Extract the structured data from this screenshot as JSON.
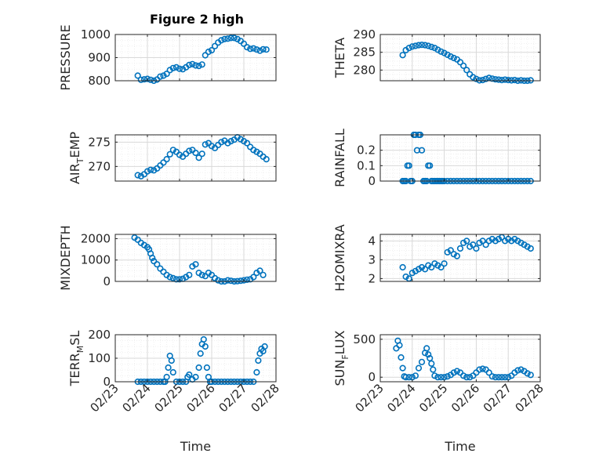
{
  "title": "Figure 2 high",
  "style": {
    "marker_color": "#0072BD",
    "axis_color": "#262626",
    "grid_major": "#d9d9d9",
    "grid_minor": "#ececec",
    "background": "#ffffff"
  },
  "chart_data": [
    {
      "id": "pressure",
      "type": "scatter",
      "ylabel": "PRESSURE",
      "xlim": [
        0,
        5
      ],
      "ylim": [
        800,
        1000
      ],
      "yticks": [
        800,
        900,
        1000
      ],
      "xticks": [
        0,
        1,
        2,
        3,
        4,
        5
      ],
      "show_xticklabels": false,
      "grid": true,
      "minor_grid": true,
      "x": [
        0.7,
        0.8,
        0.9,
        1.0,
        1.1,
        1.2,
        1.3,
        1.4,
        1.5,
        1.6,
        1.7,
        1.8,
        1.9,
        2.0,
        2.1,
        2.2,
        2.3,
        2.4,
        2.5,
        2.6,
        2.7,
        2.8,
        2.9,
        3.0,
        3.1,
        3.2,
        3.3,
        3.4,
        3.5,
        3.6,
        3.7,
        3.8,
        3.9,
        4.0,
        4.1,
        4.2,
        4.3,
        4.4,
        4.5,
        4.6,
        4.7
      ],
      "y": [
        822,
        804,
        806,
        808,
        804,
        800,
        805,
        818,
        822,
        830,
        846,
        855,
        858,
        852,
        850,
        858,
        868,
        872,
        866,
        864,
        870,
        910,
        925,
        932,
        950,
        965,
        975,
        980,
        982,
        985,
        985,
        980,
        972,
        960,
        945,
        938,
        940,
        935,
        930,
        936,
        935
      ]
    },
    {
      "id": "theta",
      "type": "scatter",
      "ylabel": "THETA",
      "xlim": [
        0,
        5
      ],
      "ylim": [
        277,
        290
      ],
      "yticks": [
        280,
        285,
        290
      ],
      "xticks": [
        0,
        1,
        2,
        3,
        4,
        5
      ],
      "show_xticklabels": false,
      "grid": true,
      "minor_grid": true,
      "x": [
        0.7,
        0.8,
        0.9,
        1.0,
        1.1,
        1.2,
        1.3,
        1.4,
        1.5,
        1.6,
        1.7,
        1.8,
        1.9,
        2.0,
        2.1,
        2.2,
        2.3,
        2.4,
        2.5,
        2.6,
        2.7,
        2.8,
        2.9,
        3.0,
        3.1,
        3.2,
        3.3,
        3.4,
        3.5,
        3.6,
        3.7,
        3.8,
        3.9,
        4.0,
        4.1,
        4.2,
        4.3,
        4.4,
        4.5,
        4.6,
        4.7
      ],
      "y": [
        284.2,
        285.6,
        286.2,
        286.6,
        286.8,
        287.0,
        287.1,
        287.0,
        286.8,
        286.5,
        286.2,
        285.7,
        285.2,
        284.8,
        284.3,
        283.8,
        283.4,
        283.0,
        282.2,
        281.2,
        280.0,
        278.8,
        278.0,
        277.5,
        277.1,
        277.2,
        277.5,
        277.8,
        277.6,
        277.4,
        277.3,
        277.2,
        277.3,
        277.2,
        277.1,
        277.2,
        277.0,
        277.1,
        277.0,
        277.0,
        277.1
      ]
    },
    {
      "id": "air_temp",
      "type": "scatter",
      "ylabel": "AIR_TEMP",
      "ylabel_main": "AIR",
      "ylabel_sub": "T",
      "ylabel_rest": "EMP",
      "xlim": [
        0,
        5
      ],
      "ylim": [
        267,
        276.5
      ],
      "yticks": [
        270,
        275
      ],
      "xticks": [
        0,
        1,
        2,
        3,
        4,
        5
      ],
      "show_xticklabels": false,
      "grid": true,
      "minor_grid": true,
      "x": [
        0.7,
        0.8,
        0.9,
        1.0,
        1.1,
        1.2,
        1.3,
        1.4,
        1.5,
        1.6,
        1.7,
        1.8,
        1.9,
        2.0,
        2.1,
        2.2,
        2.3,
        2.4,
        2.5,
        2.6,
        2.7,
        2.8,
        2.9,
        3.0,
        3.1,
        3.2,
        3.3,
        3.4,
        3.5,
        3.6,
        3.7,
        3.8,
        3.9,
        4.0,
        4.1,
        4.2,
        4.3,
        4.4,
        4.5,
        4.6,
        4.7
      ],
      "y": [
        268.2,
        268.0,
        268.4,
        269.0,
        269.3,
        269.2,
        269.6,
        270.2,
        270.8,
        271.5,
        272.5,
        273.4,
        273.0,
        272.4,
        272.0,
        272.6,
        273.2,
        273.4,
        272.8,
        271.8,
        272.6,
        274.5,
        274.8,
        274.2,
        273.8,
        274.4,
        275.0,
        275.3,
        274.8,
        275.2,
        275.5,
        276.0,
        275.6,
        275.2,
        274.8,
        274.0,
        273.4,
        273.0,
        272.6,
        272.0,
        271.5
      ]
    },
    {
      "id": "rainfall",
      "type": "scatter",
      "ylabel": "RAINFALL",
      "xlim": [
        0,
        5
      ],
      "ylim": [
        0,
        0.3
      ],
      "yticks": [
        0,
        0.1,
        0.2
      ],
      "xticks": [
        0,
        1,
        2,
        3,
        4,
        5
      ],
      "show_xticklabels": false,
      "grid": true,
      "minor_grid": true,
      "x": [
        0.7,
        0.75,
        0.8,
        0.85,
        0.9,
        0.95,
        1.0,
        1.05,
        1.1,
        1.15,
        1.2,
        1.25,
        1.3,
        1.35,
        1.4,
        1.45,
        1.5,
        1.55,
        1.6,
        1.65,
        1.7,
        1.75,
        1.8,
        1.85,
        1.9,
        1.95,
        2.0,
        2.1,
        2.2,
        2.3,
        2.4,
        2.5,
        2.6,
        2.7,
        2.8,
        2.9,
        3.0,
        3.1,
        3.2,
        3.3,
        3.4,
        3.5,
        3.6,
        3.7,
        3.8,
        3.9,
        4.0,
        4.1,
        4.2,
        4.3,
        4.4,
        4.5,
        4.6,
        4.7
      ],
      "y": [
        0,
        0,
        0,
        0.1,
        0.1,
        0,
        0,
        0.3,
        0.3,
        0.2,
        0.3,
        0.3,
        0.2,
        0,
        0,
        0,
        0.1,
        0.1,
        0,
        0,
        0,
        0,
        0,
        0,
        0,
        0,
        0,
        0,
        0,
        0,
        0,
        0,
        0,
        0,
        0,
        0,
        0,
        0,
        0,
        0,
        0,
        0,
        0,
        0,
        0,
        0,
        0,
        0,
        0,
        0,
        0,
        0,
        0,
        0
      ]
    },
    {
      "id": "mixdepth",
      "type": "scatter",
      "ylabel": "MIXDEPTH",
      "xlim": [
        0,
        5
      ],
      "ylim": [
        0,
        2200
      ],
      "yticks": [
        0,
        1000,
        2000
      ],
      "xticks": [
        0,
        1,
        2,
        3,
        4,
        5
      ],
      "show_xticklabels": false,
      "grid": true,
      "minor_grid": true,
      "x": [
        0.6,
        0.7,
        0.8,
        0.9,
        1.0,
        1.05,
        1.1,
        1.15,
        1.2,
        1.3,
        1.4,
        1.5,
        1.6,
        1.7,
        1.8,
        1.9,
        2.0,
        2.1,
        2.2,
        2.3,
        2.4,
        2.5,
        2.6,
        2.7,
        2.8,
        2.9,
        3.0,
        3.1,
        3.2,
        3.3,
        3.4,
        3.5,
        3.6,
        3.7,
        3.8,
        3.9,
        4.0,
        4.1,
        4.2,
        4.3,
        4.4,
        4.5,
        4.6
      ],
      "y": [
        2050,
        1950,
        1800,
        1700,
        1600,
        1500,
        1300,
        1100,
        950,
        800,
        600,
        450,
        300,
        200,
        150,
        100,
        100,
        120,
        200,
        300,
        700,
        800,
        400,
        300,
        250,
        400,
        300,
        150,
        50,
        0,
        0,
        50,
        30,
        0,
        10,
        30,
        50,
        80,
        100,
        200,
        400,
        500,
        300
      ]
    },
    {
      "id": "h2omixra",
      "type": "scatter",
      "ylabel": "H2OMIXRA",
      "xlim": [
        0,
        5
      ],
      "ylim": [
        1.85,
        4.35
      ],
      "yticks": [
        2,
        3,
        4
      ],
      "xticks": [
        0,
        1,
        2,
        3,
        4,
        5
      ],
      "show_xticklabels": false,
      "grid": true,
      "minor_grid": true,
      "x": [
        0.7,
        0.8,
        0.9,
        1.0,
        1.1,
        1.2,
        1.3,
        1.4,
        1.5,
        1.6,
        1.7,
        1.8,
        1.9,
        2.0,
        2.1,
        2.2,
        2.3,
        2.4,
        2.5,
        2.6,
        2.7,
        2.8,
        2.9,
        3.0,
        3.1,
        3.2,
        3.3,
        3.4,
        3.5,
        3.6,
        3.7,
        3.8,
        3.9,
        4.0,
        4.1,
        4.2,
        4.3,
        4.4,
        4.5,
        4.6,
        4.7
      ],
      "y": [
        2.6,
        2.1,
        2.0,
        2.3,
        2.4,
        2.5,
        2.6,
        2.5,
        2.7,
        2.6,
        2.8,
        2.7,
        2.6,
        2.8,
        3.4,
        3.5,
        3.3,
        3.2,
        3.6,
        3.9,
        4.0,
        3.7,
        3.8,
        3.6,
        3.9,
        4.0,
        3.8,
        4.0,
        4.1,
        4.0,
        4.1,
        4.2,
        4.0,
        4.1,
        4.0,
        4.1,
        4.0,
        3.9,
        3.8,
        3.7,
        3.6
      ]
    },
    {
      "id": "terr_msl",
      "type": "scatter",
      "ylabel": "TERR_MSL",
      "ylabel_main": "TERR",
      "ylabel_sub": "M",
      "ylabel_rest": "SL",
      "xlim": [
        0,
        5
      ],
      "ylim": [
        0,
        200
      ],
      "yticks": [
        0,
        100,
        200
      ],
      "xticks": [
        0,
        1,
        2,
        3,
        4,
        5
      ],
      "xticklabels": [
        "02/23",
        "02/24",
        "02/25",
        "02/26",
        "02/27",
        "02/28"
      ],
      "xlabel": "Time",
      "show_xticklabels": true,
      "grid": true,
      "minor_grid": true,
      "x": [
        0.7,
        0.8,
        0.9,
        1.0,
        1.1,
        1.2,
        1.3,
        1.4,
        1.5,
        1.55,
        1.6,
        1.65,
        1.7,
        1.75,
        1.8,
        1.9,
        2.0,
        2.1,
        2.2,
        2.25,
        2.3,
        2.4,
        2.5,
        2.6,
        2.65,
        2.7,
        2.75,
        2.8,
        2.85,
        2.9,
        2.95,
        3.0,
        3.1,
        3.2,
        3.3,
        3.4,
        3.5,
        3.6,
        3.7,
        3.8,
        3.9,
        4.0,
        4.1,
        4.2,
        4.3,
        4.4,
        4.45,
        4.5,
        4.55,
        4.6,
        4.65
      ],
      "y": [
        0,
        0,
        0,
        0,
        0,
        0,
        0,
        0,
        0,
        0,
        20,
        60,
        110,
        90,
        40,
        0,
        0,
        0,
        0,
        20,
        30,
        10,
        20,
        60,
        120,
        160,
        180,
        150,
        60,
        20,
        0,
        0,
        0,
        0,
        0,
        0,
        0,
        0,
        0,
        0,
        0,
        0,
        0,
        0,
        0,
        40,
        90,
        120,
        140,
        130,
        150
      ]
    },
    {
      "id": "sun_flux",
      "type": "scatter",
      "ylabel": "SUN_FLUX",
      "ylabel_main": "SUN",
      "ylabel_sub": "F",
      "ylabel_rest": "LUX",
      "xlim": [
        0,
        5
      ],
      "ylim": [
        -60,
        560
      ],
      "yticks": [
        0,
        500
      ],
      "xticks": [
        0,
        1,
        2,
        3,
        4,
        5
      ],
      "xticklabels": [
        "02/23",
        "02/24",
        "02/25",
        "02/26",
        "02/27",
        "02/28"
      ],
      "xlabel": "Time",
      "show_xticklabels": true,
      "grid": true,
      "minor_grid": true,
      "x": [
        0.5,
        0.55,
        0.6,
        0.65,
        0.7,
        0.75,
        0.8,
        0.9,
        1.0,
        1.1,
        1.2,
        1.3,
        1.4,
        1.45,
        1.5,
        1.55,
        1.6,
        1.65,
        1.7,
        1.8,
        1.9,
        2.0,
        2.1,
        2.2,
        2.3,
        2.4,
        2.5,
        2.6,
        2.7,
        2.8,
        2.9,
        3.0,
        3.1,
        3.2,
        3.3,
        3.4,
        3.5,
        3.6,
        3.7,
        3.8,
        3.9,
        4.0,
        4.1,
        4.2,
        4.3,
        4.4,
        4.5,
        4.6,
        4.7
      ],
      "y": [
        380,
        480,
        420,
        260,
        120,
        10,
        0,
        0,
        0,
        20,
        120,
        200,
        320,
        380,
        300,
        250,
        180,
        100,
        20,
        0,
        0,
        0,
        10,
        30,
        60,
        80,
        60,
        20,
        0,
        0,
        20,
        60,
        100,
        110,
        100,
        60,
        10,
        0,
        0,
        0,
        0,
        0,
        20,
        60,
        90,
        100,
        80,
        50,
        30
      ]
    }
  ]
}
